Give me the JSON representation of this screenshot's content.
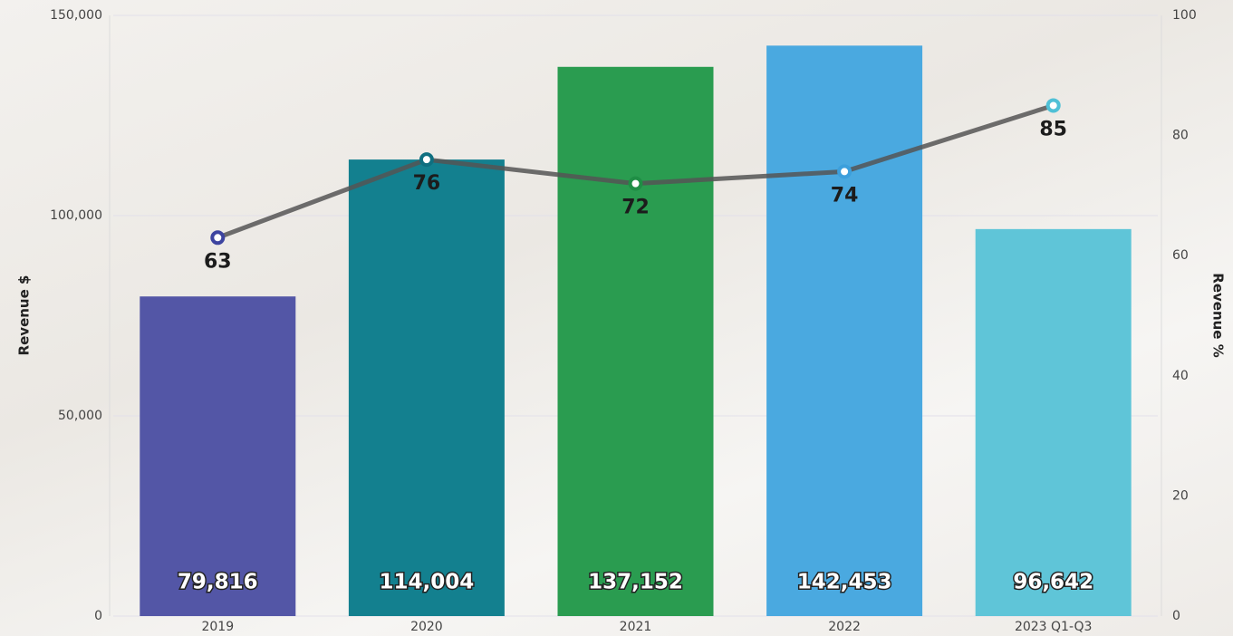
{
  "chart_data": {
    "type": "bar",
    "categories": [
      "2019",
      "2020",
      "2021",
      "2022",
      "2023 Q1-Q3"
    ],
    "series": [
      {
        "type": "bar",
        "colors": [
          "#5356a6",
          "#13808f",
          "#2a9c50",
          "#4aa9e0",
          "#5fc5d8"
        ],
        "values": [
          79816,
          114004,
          137152,
          142453,
          96642
        ],
        "value_labels": [
          "79,816",
          "114,004",
          "137,152",
          "142,453",
          "96,642"
        ]
      },
      {
        "type": "line",
        "axis": "y2",
        "color": "#555555",
        "marker_colors": [
          "#3d44a0",
          "#0f6f80",
          "#1f8e45",
          "#3c9fdc",
          "#4fc0d6"
        ],
        "values": [
          63,
          76,
          72,
          74,
          85
        ]
      }
    ],
    "ylabel": "Revenue $",
    "y2label": "Revenue %",
    "ylim": [
      0,
      150000
    ],
    "yticks": [
      0,
      {
        "value": 50000,
        "label": "50,000"
      },
      {
        "value": 100000,
        "label": "100,000"
      },
      {
        "value": 150000,
        "label": "150,000"
      }
    ],
    "y2lim": [
      0,
      100
    ],
    "y2ticks": [
      0,
      20,
      40,
      60,
      80,
      100
    ],
    "grid": true
  }
}
